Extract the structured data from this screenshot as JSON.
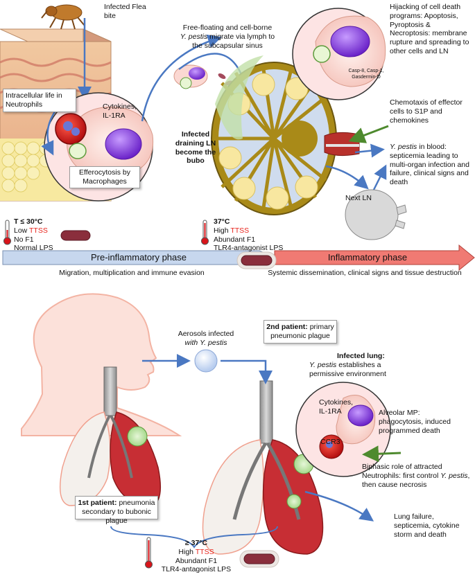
{
  "bubonic": {
    "infected_flea_bite": "Infected Flea bite",
    "intracellular_neutrophils": "Intracellular life in Neutrophils",
    "cytokines": "Cytokines, IL-1RA",
    "efferocytosis": "Efferocytosis by Macrophages",
    "free_floating_pre": "Free-floating and cell-borne",
    "free_floating_species": "Y. pestis",
    "free_floating_post": "migrate via lymph to the subcapsular sinus",
    "hijacking": "Hijacking of cell death programs: Apoptosis, Pyroptosis & Necroptosis: membrane rupture and spreading to other cells and LN",
    "caspases": "Casp-8, Casp-1, Gasdermin-D",
    "chemotaxis": "Chemotaxis of effector cells to S1P and chemokines",
    "infected_ln": "Infected draining LN become the bubo",
    "blood_species": "Y. pestis",
    "blood_text": "in blood: septicemia leading to multi-organ infection and failure, clinical signs and death",
    "next_ln": "Next LN"
  },
  "temperature_low": {
    "temp": "T ≤ 30°C",
    "ttss_prefix": "Low",
    "ttss": "TTSS",
    "f1": "No F1",
    "lps": "Normal LPS"
  },
  "temperature_high": {
    "temp": "37°C",
    "ttss_prefix": "High",
    "ttss": "TTSS",
    "f1": "Abundant F1",
    "lps": "TLR4-antagonist LPS"
  },
  "phases": {
    "pre_label": "Pre-inflammatory phase",
    "pre_caption": "Migration, multiplication and immune evasion",
    "inf_label": "Inflammatory phase",
    "inf_caption": "Systemic dissemination, clinical signs and tissue destruction"
  },
  "pneumonic": {
    "aerosols_pre": "Aerosols infected",
    "aerosols_with": "with",
    "aerosols_species": "Y. pestis",
    "second_patient_bold": "2nd patient:",
    "second_patient_text": "primary pneumonic plague",
    "infected_lung_title": "Infected lung:",
    "infected_lung_species": "Y. pestis",
    "infected_lung_text": "establishes a permissive environment",
    "cytokines": "Cytokines, IL-1RA",
    "alveolar": "Alveolar MP: phagocytosis, induced programmed death",
    "ccr3": "CCR3",
    "biphasic_text": "Biphasic role of attracted Neutrophils: first control",
    "biphasic_species": "Y. pestis",
    "biphasic_end": ", then cause necrosis",
    "first_patient_bold": "1st patient:",
    "first_patient_text": "pneumonia secondary to bubonic plague",
    "lung_failure": "Lung failure, septicemia, cytokine storm and death"
  },
  "temperature_bottom": {
    "temp": "≥ 37°C",
    "ttss_prefix": "High",
    "ttss": "TTSS",
    "f1": "Abundant F1",
    "lps": "TLR4-antagonist LPS"
  },
  "colors": {
    "pre_phase": "#c7d7ee",
    "inf_phase": "#f07a73",
    "arrow_blue": "#4a78c2",
    "ttss_red": "#e8241c",
    "chemotaxis_green": "#4e8a2e"
  }
}
